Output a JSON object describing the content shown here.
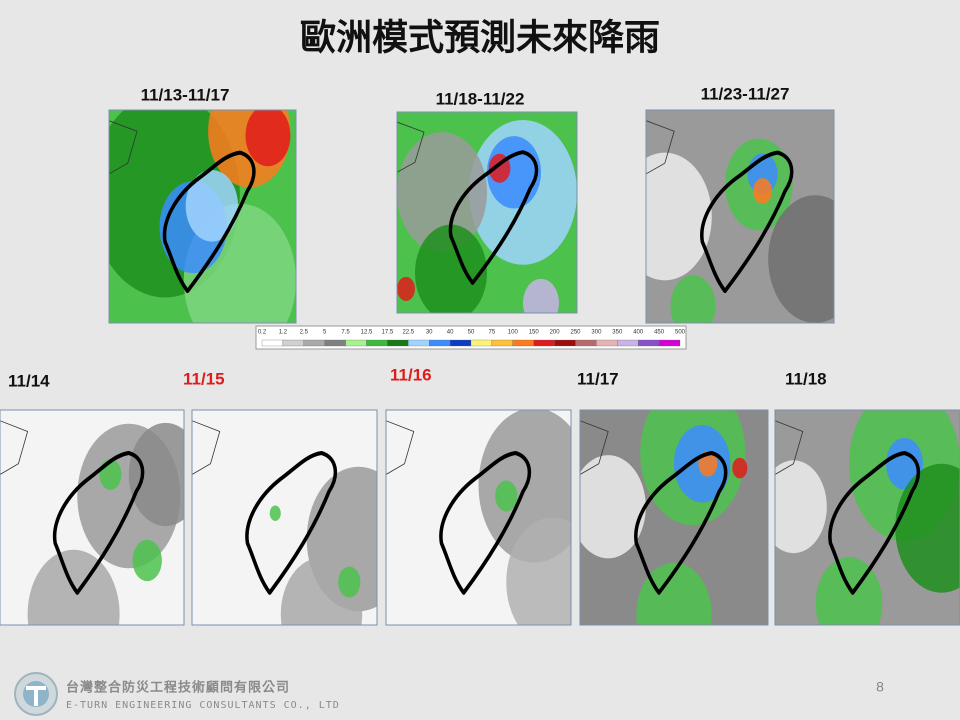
{
  "title": "歐洲模式預測未來降雨",
  "period_labels": [
    "11/13-11/17",
    "11/18-11/22",
    "11/23-11/27"
  ],
  "colorbar": {
    "labels": [
      0.2,
      1.2,
      2.5,
      5,
      7.5,
      12.5,
      17.5,
      22.5,
      30,
      40,
      50,
      75,
      100,
      150,
      200,
      250,
      300,
      350,
      400,
      450,
      500
    ]
  },
  "day_labels": [
    "11/14",
    "11/15",
    "11/16",
    "11/17",
    "11/18"
  ],
  "page_number": 8,
  "footer": {
    "company_zh": "台灣整合防災工程技術顧問有限公司",
    "company_en": "E-TURN ENGINEERING CONSULTANTS CO., LTD"
  }
}
